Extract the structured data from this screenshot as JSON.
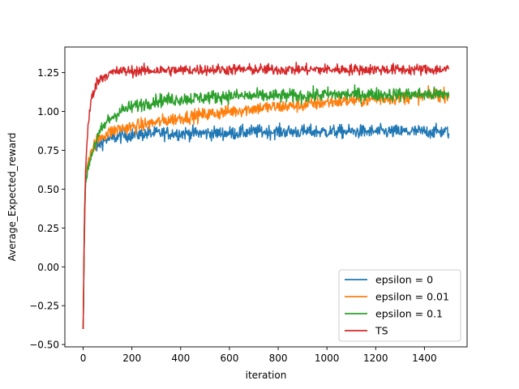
{
  "chart_data": {
    "type": "line",
    "title": "",
    "xlabel": "iteration",
    "ylabel": "Average_Expected_reward",
    "xlim": [
      -75,
      1575
    ],
    "ylim": [
      -0.515,
      1.415
    ],
    "xticks": [
      0,
      200,
      400,
      600,
      800,
      1000,
      1200,
      1400
    ],
    "yticks": [
      -0.5,
      -0.25,
      0.0,
      0.25,
      0.5,
      0.75,
      1.0,
      1.25
    ],
    "ytick_labels": [
      "−0.50",
      "−0.25",
      "0.00",
      "0.25",
      "0.50",
      "0.75",
      "1.00",
      "1.25"
    ],
    "grid": false,
    "legend_position": "lower-right",
    "x": [
      0,
      5,
      10,
      20,
      30,
      50,
      75,
      100,
      150,
      200,
      300,
      400,
      500,
      600,
      700,
      800,
      900,
      1000,
      1100,
      1200,
      1300,
      1400,
      1500
    ],
    "series": [
      {
        "name": "epsilon = 0",
        "color": "#1f77b4",
        "noise": 0.022,
        "values": [
          -0.4,
          0.2,
          0.55,
          0.66,
          0.72,
          0.77,
          0.8,
          0.82,
          0.84,
          0.85,
          0.86,
          0.86,
          0.86,
          0.86,
          0.87,
          0.87,
          0.87,
          0.87,
          0.87,
          0.87,
          0.87,
          0.87,
          0.87
        ]
      },
      {
        "name": "epsilon = 0.01",
        "color": "#ff7f0e",
        "noise": 0.022,
        "values": [
          -0.4,
          0.25,
          0.58,
          0.68,
          0.74,
          0.8,
          0.84,
          0.86,
          0.89,
          0.9,
          0.93,
          0.96,
          0.98,
          1.0,
          1.02,
          1.03,
          1.04,
          1.06,
          1.07,
          1.08,
          1.09,
          1.1,
          1.11
        ]
      },
      {
        "name": "epsilon = 0.1",
        "color": "#2ca02c",
        "noise": 0.022,
        "values": [
          -0.4,
          0.25,
          0.55,
          0.64,
          0.7,
          0.8,
          0.88,
          0.94,
          1.0,
          1.03,
          1.07,
          1.08,
          1.09,
          1.1,
          1.1,
          1.1,
          1.1,
          1.11,
          1.11,
          1.11,
          1.11,
          1.11,
          1.11
        ]
      },
      {
        "name": "TS",
        "color": "#d62728",
        "noise": 0.018,
        "values": [
          -0.4,
          0.3,
          0.62,
          0.9,
          1.05,
          1.17,
          1.22,
          1.24,
          1.26,
          1.26,
          1.265,
          1.265,
          1.27,
          1.27,
          1.27,
          1.27,
          1.27,
          1.27,
          1.27,
          1.27,
          1.27,
          1.27,
          1.27
        ]
      }
    ]
  }
}
